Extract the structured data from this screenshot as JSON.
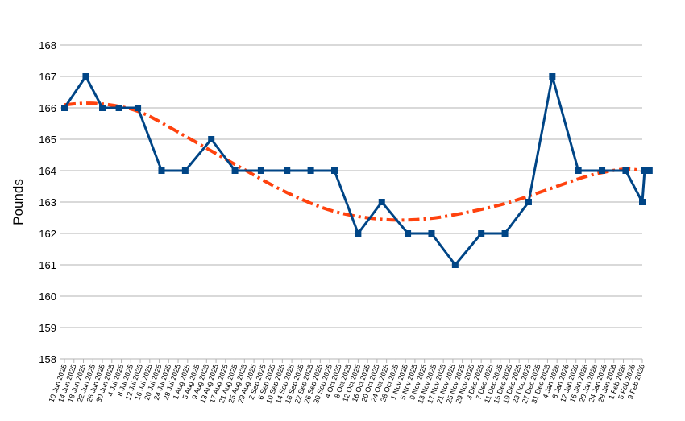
{
  "chart_data": {
    "type": "line",
    "ylabel": "Pounds",
    "ylim": [
      158,
      168
    ],
    "yticks": [
      158,
      159,
      160,
      161,
      162,
      163,
      164,
      165,
      166,
      167,
      168
    ],
    "grid": true,
    "x_range": [
      "2025-06-10",
      "2026-02-09"
    ],
    "x_tick_labels": [
      "10 Jun 2025",
      "14 Jun 2025",
      "18 Jun 2025",
      "22 Jun 2025",
      "26 Jun 2025",
      "30 Jun 2025",
      "4 Jul 2025",
      "8 Jul 2025",
      "12 Jul 2025",
      "16 Jul 2025",
      "20 Jul 2025",
      "24 Jul 2025",
      "28 Jul 2025",
      "1 Aug 2025",
      "5 Aug 2025",
      "9 Aug 2025",
      "13 Aug 2025",
      "17 Aug 2025",
      "21 Aug 2025",
      "25 Aug 2025",
      "29 Aug 2025",
      "2 Sep 2025",
      "6 Sep 2025",
      "10 Sep 2025",
      "14 Sep 2025",
      "18 Sep 2025",
      "22 Sep 2025",
      "26 Sep 2025",
      "30 Sep 2025",
      "4 Oct 2025",
      "8 Oct 2025",
      "12 Oct 2025",
      "16 Oct 2025",
      "20 Oct 2025",
      "24 Oct 2025",
      "28 Oct 2025",
      "1 Nov 2025",
      "5 Nov 2025",
      "9 Nov 2025",
      "13 Nov 2025",
      "17 Nov 2025",
      "21 Nov 2025",
      "25 Nov 2025",
      "29 Nov 2025",
      "3 Dec 2025",
      "7 Dec 2025",
      "11 Dec 2025",
      "15 Dec 2025",
      "19 Dec 2025",
      "23 Dec 2025",
      "27 Dec 2025",
      "31 Dec 2025",
      "4 Jan 2026",
      "8 Jan 2026",
      "12 Jan 2026",
      "16 Jan 2026",
      "20 Jan 2026",
      "24 Jan 2026",
      "28 Jan 2026",
      "1 Feb 2026",
      "5 Feb 2026",
      "9 Feb 2026"
    ],
    "series": [
      {
        "color": "#004586",
        "marker": "square",
        "points": [
          {
            "x": "2025-06-10",
            "y": 166
          },
          {
            "x": "2025-06-19",
            "y": 167
          },
          {
            "x": "2025-06-26",
            "y": 166
          },
          {
            "x": "2025-07-03",
            "y": 166
          },
          {
            "x": "2025-07-11",
            "y": 166
          },
          {
            "x": "2025-07-21",
            "y": 164
          },
          {
            "x": "2025-07-31",
            "y": 164
          },
          {
            "x": "2025-08-11",
            "y": 165
          },
          {
            "x": "2025-08-21",
            "y": 164
          },
          {
            "x": "2025-09-01",
            "y": 164
          },
          {
            "x": "2025-09-12",
            "y": 164
          },
          {
            "x": "2025-09-22",
            "y": 164
          },
          {
            "x": "2025-10-02",
            "y": 164
          },
          {
            "x": "2025-10-12",
            "y": 162
          },
          {
            "x": "2025-10-22",
            "y": 163
          },
          {
            "x": "2025-11-02",
            "y": 162
          },
          {
            "x": "2025-11-12",
            "y": 162
          },
          {
            "x": "2025-11-22",
            "y": 161
          },
          {
            "x": "2025-12-03",
            "y": 162
          },
          {
            "x": "2025-12-13",
            "y": 162
          },
          {
            "x": "2025-12-23",
            "y": 163
          },
          {
            "x": "2026-01-02",
            "y": 167
          },
          {
            "x": "2026-01-13",
            "y": 164
          },
          {
            "x": "2026-01-23",
            "y": 164
          },
          {
            "x": "2026-02-02",
            "y": 164
          },
          {
            "x": "2026-02-09",
            "y": 163
          },
          {
            "x": "2026-02-10",
            "y": 164
          },
          {
            "x": "2026-02-12",
            "y": 164
          }
        ]
      },
      {
        "color": "#ff420e",
        "style": "dash-dot",
        "trendline": "polynomial",
        "points": [
          {
            "x": "2025-06-10",
            "y": 166.1
          },
          {
            "x": "2025-06-21",
            "y": 166.15
          },
          {
            "x": "2025-07-03",
            "y": 166.05
          },
          {
            "x": "2025-07-14",
            "y": 165.8
          },
          {
            "x": "2025-07-31",
            "y": 165.1
          },
          {
            "x": "2025-08-21",
            "y": 164.2
          },
          {
            "x": "2025-09-12",
            "y": 163.3
          },
          {
            "x": "2025-10-02",
            "y": 162.7
          },
          {
            "x": "2025-10-22",
            "y": 162.45
          },
          {
            "x": "2025-11-07",
            "y": 162.45
          },
          {
            "x": "2025-11-22",
            "y": 162.6
          },
          {
            "x": "2025-12-13",
            "y": 162.95
          },
          {
            "x": "2026-01-02",
            "y": 163.45
          },
          {
            "x": "2026-01-18",
            "y": 163.85
          },
          {
            "x": "2026-02-02",
            "y": 164.05
          },
          {
            "x": "2026-02-12",
            "y": 163.95
          }
        ]
      }
    ]
  }
}
